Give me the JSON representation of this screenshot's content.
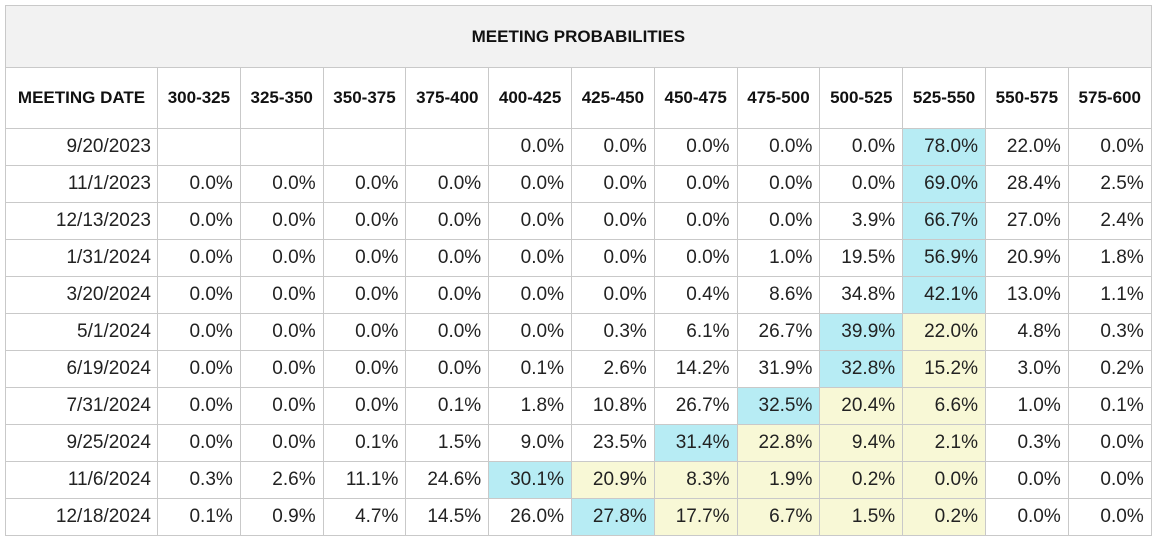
{
  "title": "MEETING PROBABILITIES",
  "colors": {
    "highlight_max": "#b7ecf4",
    "highlight_adjacent": "#f8f8d6",
    "header_bg": "#f2f2f2",
    "border": "#c9c9c9"
  },
  "columns": [
    "MEETING DATE",
    "300-325",
    "325-350",
    "350-375",
    "375-400",
    "400-425",
    "425-450",
    "450-475",
    "475-500",
    "500-525",
    "525-550",
    "550-575",
    "575-600"
  ],
  "rows": [
    {
      "date": "9/20/2023",
      "values": [
        "",
        "",
        "",
        "",
        "0.0%",
        "0.0%",
        "0.0%",
        "0.0%",
        "0.0%",
        "78.0%",
        "22.0%",
        "0.0%"
      ],
      "hl": [
        "",
        "",
        "",
        "",
        "",
        "",
        "",
        "",
        "",
        "b",
        "",
        ""
      ]
    },
    {
      "date": "11/1/2023",
      "values": [
        "0.0%",
        "0.0%",
        "0.0%",
        "0.0%",
        "0.0%",
        "0.0%",
        "0.0%",
        "0.0%",
        "0.0%",
        "69.0%",
        "28.4%",
        "2.5%"
      ],
      "hl": [
        "",
        "",
        "",
        "",
        "",
        "",
        "",
        "",
        "",
        "b",
        "",
        ""
      ]
    },
    {
      "date": "12/13/2023",
      "values": [
        "0.0%",
        "0.0%",
        "0.0%",
        "0.0%",
        "0.0%",
        "0.0%",
        "0.0%",
        "0.0%",
        "3.9%",
        "66.7%",
        "27.0%",
        "2.4%"
      ],
      "hl": [
        "",
        "",
        "",
        "",
        "",
        "",
        "",
        "",
        "",
        "b",
        "",
        ""
      ]
    },
    {
      "date": "1/31/2024",
      "values": [
        "0.0%",
        "0.0%",
        "0.0%",
        "0.0%",
        "0.0%",
        "0.0%",
        "0.0%",
        "1.0%",
        "19.5%",
        "56.9%",
        "20.9%",
        "1.8%"
      ],
      "hl": [
        "",
        "",
        "",
        "",
        "",
        "",
        "",
        "",
        "",
        "b",
        "",
        ""
      ]
    },
    {
      "date": "3/20/2024",
      "values": [
        "0.0%",
        "0.0%",
        "0.0%",
        "0.0%",
        "0.0%",
        "0.0%",
        "0.4%",
        "8.6%",
        "34.8%",
        "42.1%",
        "13.0%",
        "1.1%"
      ],
      "hl": [
        "",
        "",
        "",
        "",
        "",
        "",
        "",
        "",
        "",
        "b",
        "",
        ""
      ]
    },
    {
      "date": "5/1/2024",
      "values": [
        "0.0%",
        "0.0%",
        "0.0%",
        "0.0%",
        "0.0%",
        "0.3%",
        "6.1%",
        "26.7%",
        "39.9%",
        "22.0%",
        "4.8%",
        "0.3%"
      ],
      "hl": [
        "",
        "",
        "",
        "",
        "",
        "",
        "",
        "",
        "b",
        "y",
        "",
        ""
      ]
    },
    {
      "date": "6/19/2024",
      "values": [
        "0.0%",
        "0.0%",
        "0.0%",
        "0.0%",
        "0.1%",
        "2.6%",
        "14.2%",
        "31.9%",
        "32.8%",
        "15.2%",
        "3.0%",
        "0.2%"
      ],
      "hl": [
        "",
        "",
        "",
        "",
        "",
        "",
        "",
        "",
        "b",
        "y",
        "",
        ""
      ]
    },
    {
      "date": "7/31/2024",
      "values": [
        "0.0%",
        "0.0%",
        "0.0%",
        "0.1%",
        "1.8%",
        "10.8%",
        "26.7%",
        "32.5%",
        "20.4%",
        "6.6%",
        "1.0%",
        "0.1%"
      ],
      "hl": [
        "",
        "",
        "",
        "",
        "",
        "",
        "",
        "b",
        "y",
        "y",
        "",
        ""
      ]
    },
    {
      "date": "9/25/2024",
      "values": [
        "0.0%",
        "0.0%",
        "0.1%",
        "1.5%",
        "9.0%",
        "23.5%",
        "31.4%",
        "22.8%",
        "9.4%",
        "2.1%",
        "0.3%",
        "0.0%"
      ],
      "hl": [
        "",
        "",
        "",
        "",
        "",
        "",
        "b",
        "y",
        "y",
        "y",
        "",
        ""
      ]
    },
    {
      "date": "11/6/2024",
      "values": [
        "0.3%",
        "2.6%",
        "11.1%",
        "24.6%",
        "30.1%",
        "20.9%",
        "8.3%",
        "1.9%",
        "0.2%",
        "0.0%",
        "0.0%",
        "0.0%"
      ],
      "hl": [
        "",
        "",
        "",
        "",
        "b",
        "y",
        "y",
        "y",
        "y",
        "y",
        "",
        ""
      ]
    },
    {
      "date": "12/18/2024",
      "values": [
        "0.1%",
        "0.9%",
        "4.7%",
        "14.5%",
        "26.0%",
        "27.8%",
        "17.7%",
        "6.7%",
        "1.5%",
        "0.2%",
        "0.0%",
        "0.0%"
      ],
      "hl": [
        "",
        "",
        "",
        "",
        "",
        "b",
        "y",
        "y",
        "y",
        "y",
        "",
        ""
      ]
    }
  ]
}
